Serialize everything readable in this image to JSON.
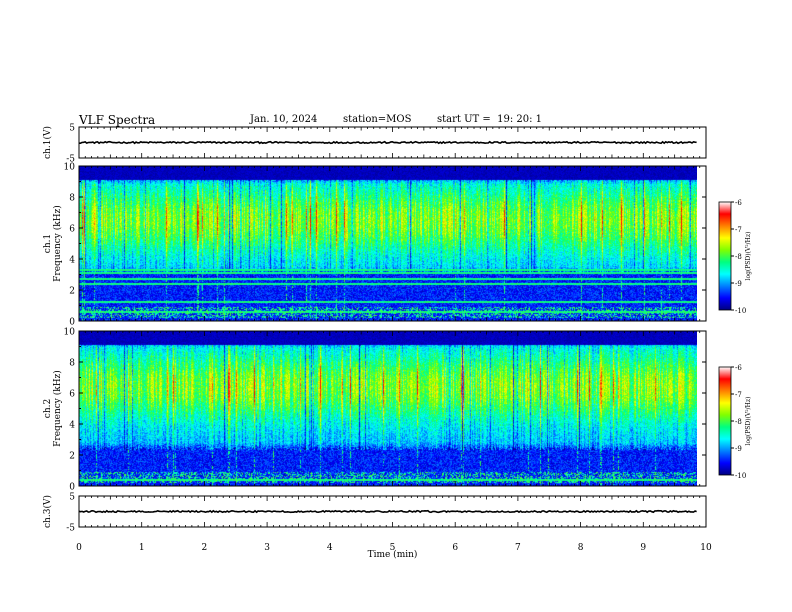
{
  "header": {
    "title": "VLF Spectra",
    "date": "Jan. 10, 2024",
    "station": "station=MOS",
    "start_ut": "start UT =  19: 20: 1"
  },
  "colors": {
    "colorbar": [
      "#000080",
      "#0000ff",
      "#0080ff",
      "#00ffff",
      "#00ff80",
      "#80ff00",
      "#ffff00",
      "#ff8000",
      "#ff0000",
      "#ffffff"
    ],
    "frame": "#000000"
  },
  "chart_data": [
    {
      "type": "line",
      "ylabel": "ch.1(V)",
      "ylim": [
        -5,
        5
      ],
      "yticks": [
        "5",
        "-5"
      ],
      "xlim": [
        0,
        10
      ],
      "series": [
        {
          "x": [
            0,
            9.85
          ],
          "y": [
            0.0,
            0.0
          ]
        }
      ]
    },
    {
      "type": "heatmap",
      "ylabel": "ch.1\nFrequency (kHz)",
      "ylabel_lines": [
        "ch.1",
        "Frequency (kHz)"
      ],
      "ylim": [
        0,
        10
      ],
      "yticks": [
        "0",
        "2",
        "4",
        "6",
        "8",
        "10"
      ],
      "xlim": [
        0,
        10
      ],
      "data_xmax": 9.85,
      "band_low_khz": 3.0,
      "band_high_khz": 9.3,
      "peak_khz": 6.5,
      "line_frequencies_khz": [
        0.6,
        1.2,
        2.4,
        2.7,
        3.1,
        3.3
      ],
      "colorbar": {
        "label": "log(PSD)(V²/Hz)",
        "ticks": [
          "-6",
          "-7",
          "-8",
          "-9",
          "-10"
        ],
        "range": [
          -10,
          -6
        ]
      }
    },
    {
      "type": "heatmap",
      "ylabel": "ch.2\nFrequency (kHz)",
      "ylabel_lines": [
        "ch.2",
        "Frequency (kHz)"
      ],
      "ylim": [
        0,
        10
      ],
      "yticks": [
        "0",
        "2",
        "4",
        "6",
        "8",
        "10"
      ],
      "xlim": [
        0,
        10
      ],
      "data_xmax": 9.85,
      "band_low_khz": 2.3,
      "band_high_khz": 9.4,
      "peak_khz": 6.4,
      "line_frequencies_khz": [
        0.4
      ],
      "colorbar": {
        "label": "log(PSD)(V²/Hz)",
        "ticks": [
          "-6",
          "-7",
          "-8",
          "-9",
          "-10"
        ],
        "range": [
          -10,
          -6
        ]
      }
    },
    {
      "type": "line",
      "ylabel": "ch.3(V)",
      "ylim": [
        -5,
        5
      ],
      "yticks": [
        "5",
        "-5"
      ],
      "xlim": [
        0,
        10
      ],
      "series": [
        {
          "x": [
            0,
            9.85
          ],
          "y": [
            0.0,
            0.0
          ]
        }
      ]
    }
  ],
  "xaxis": {
    "label": "Time (min)",
    "ticks": [
      "0",
      "1",
      "2",
      "3",
      "4",
      "5",
      "6",
      "7",
      "8",
      "9",
      "10"
    ]
  }
}
